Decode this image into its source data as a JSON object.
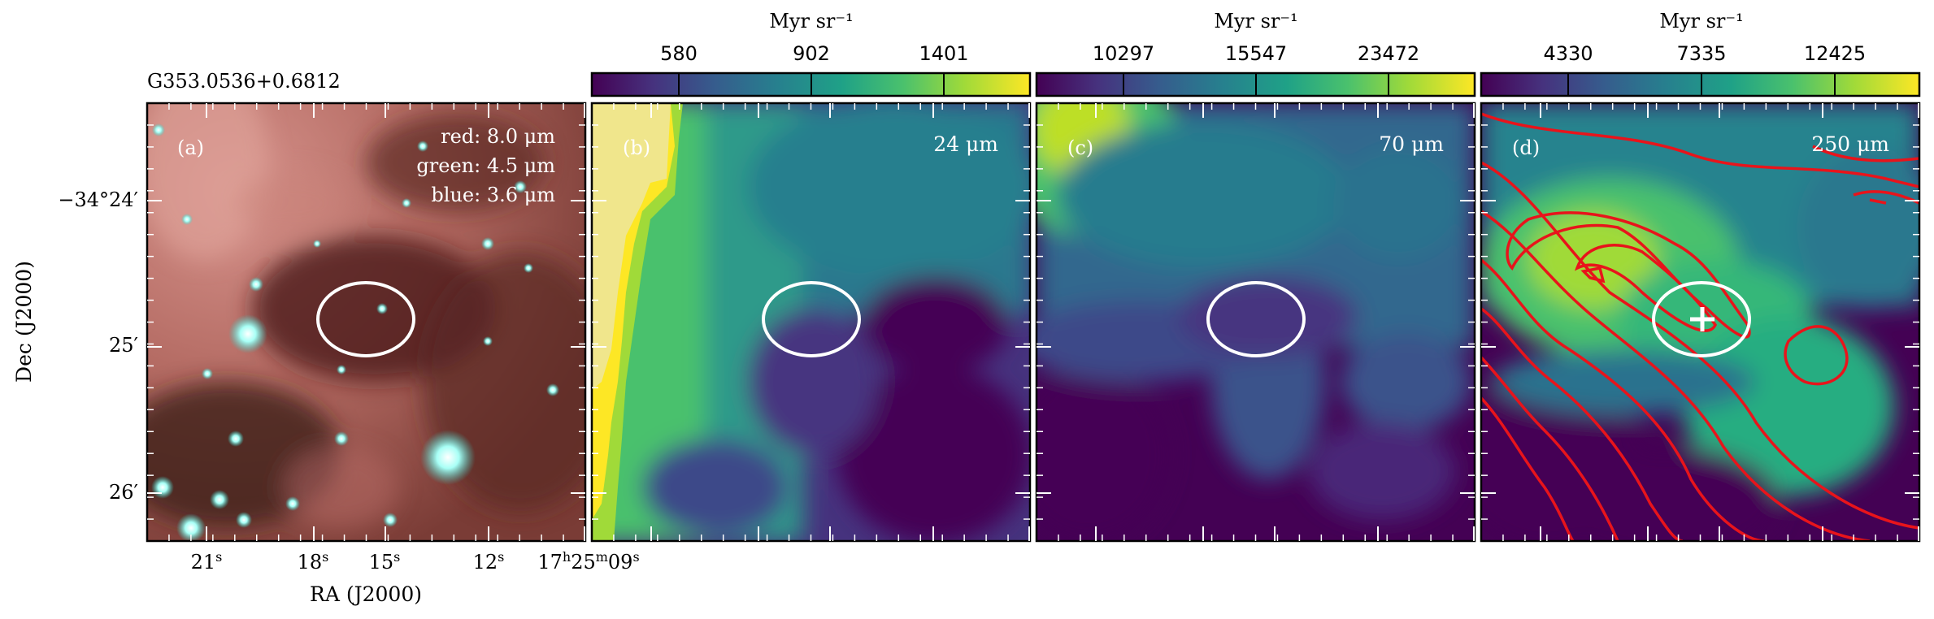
{
  "figure": {
    "source_name": "G353.0536+0.6812",
    "xlabel": "RA (J2000)",
    "ylabel": "Dec (J2000)",
    "ra_tick_labels": [
      "21",
      "18",
      "15",
      "12",
      "17",
      "25",
      "09"
    ],
    "dec_tick_labels": [
      "−34°24′",
      "25′",
      "26′"
    ]
  },
  "panels": [
    {
      "id": "a",
      "label": "(a)",
      "legend": [
        "red: 8.0 μm",
        "green: 4.5 μm",
        "blue: 3.6 μm"
      ]
    },
    {
      "id": "b",
      "label": "(b)",
      "wavelength": "24 μm",
      "colorbar_unit": "Myr sr⁻¹",
      "colorbar_ticks": [
        "580",
        "902",
        "1401"
      ]
    },
    {
      "id": "c",
      "label": "(c)",
      "wavelength": "70 μm",
      "colorbar_unit": "Myr sr⁻¹",
      "colorbar_ticks": [
        "10297",
        "15547",
        "23472"
      ]
    },
    {
      "id": "d",
      "label": "(d)",
      "wavelength": "250 μm",
      "colorbar_unit": "Myr sr⁻¹",
      "colorbar_ticks": [
        "4330",
        "7335",
        "12425"
      ]
    }
  ],
  "colors": {
    "viridis": [
      "#440154",
      "#46327e",
      "#365c8d",
      "#277f8e",
      "#1fa187",
      "#4ac16d",
      "#a0da39",
      "#fde725"
    ],
    "contour": "#e8141b",
    "ellipse": "#ffffff"
  }
}
